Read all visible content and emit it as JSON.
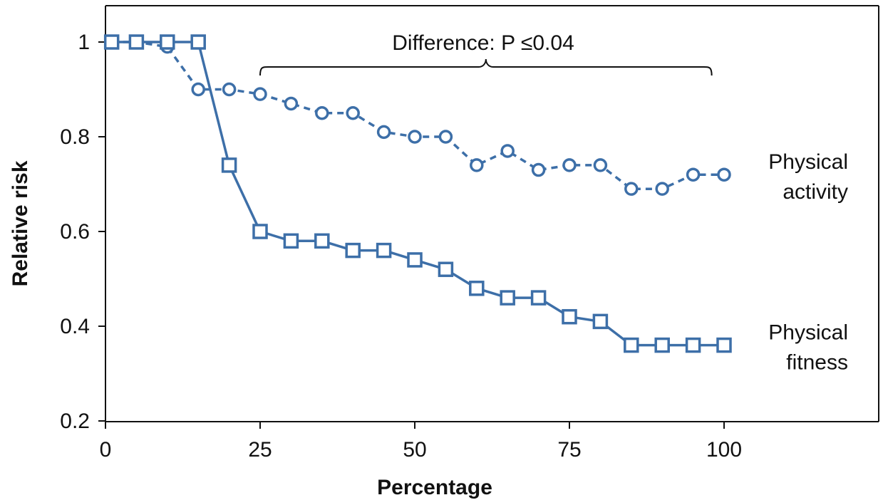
{
  "chart_data": {
    "type": "line",
    "xlabel": "Percentage",
    "ylabel": "Relative risk",
    "xlim": [
      0,
      125
    ],
    "ylim": [
      0.2,
      1.07
    ],
    "x_ticks": [
      0,
      25,
      50,
      75,
      100
    ],
    "x_tick_labels": [
      "0",
      "25",
      "50",
      "75",
      "100"
    ],
    "y_ticks": [
      0.2,
      0.4,
      0.6,
      0.8,
      1
    ],
    "y_tick_labels": [
      "0.2",
      "0.4",
      "0.6",
      "0.8",
      "1"
    ],
    "grid": false,
    "series": [
      {
        "key": "activity",
        "label_lines": [
          "Physical",
          "activity"
        ],
        "marker": "circle",
        "line_style": "dashed",
        "color": "#3d6fa8",
        "x": [
          1,
          5,
          10,
          15,
          20,
          25,
          30,
          35,
          40,
          45,
          50,
          55,
          60,
          65,
          70,
          75,
          80,
          85,
          90,
          95,
          100
        ],
        "y": [
          1.0,
          1.0,
          0.99,
          0.9,
          0.9,
          0.89,
          0.87,
          0.85,
          0.85,
          0.81,
          0.8,
          0.8,
          0.74,
          0.77,
          0.73,
          0.74,
          0.74,
          0.69,
          0.69,
          0.72,
          0.72
        ]
      },
      {
        "key": "fitness",
        "label_lines": [
          "Physical",
          "fitness"
        ],
        "marker": "square",
        "line_style": "solid",
        "color": "#3d6fa8",
        "x": [
          1,
          5,
          10,
          15,
          20,
          25,
          30,
          35,
          40,
          45,
          50,
          55,
          60,
          65,
          70,
          75,
          80,
          85,
          90,
          95,
          100
        ],
        "y": [
          1.0,
          1.0,
          1.0,
          1.0,
          0.74,
          0.6,
          0.58,
          0.58,
          0.56,
          0.56,
          0.54,
          0.52,
          0.48,
          0.46,
          0.46,
          0.42,
          0.41,
          0.36,
          0.36,
          0.36,
          0.36
        ]
      }
    ],
    "annotation": {
      "text": "Difference: P ≤0.04",
      "bracket_x_range": [
        25,
        98
      ]
    }
  }
}
